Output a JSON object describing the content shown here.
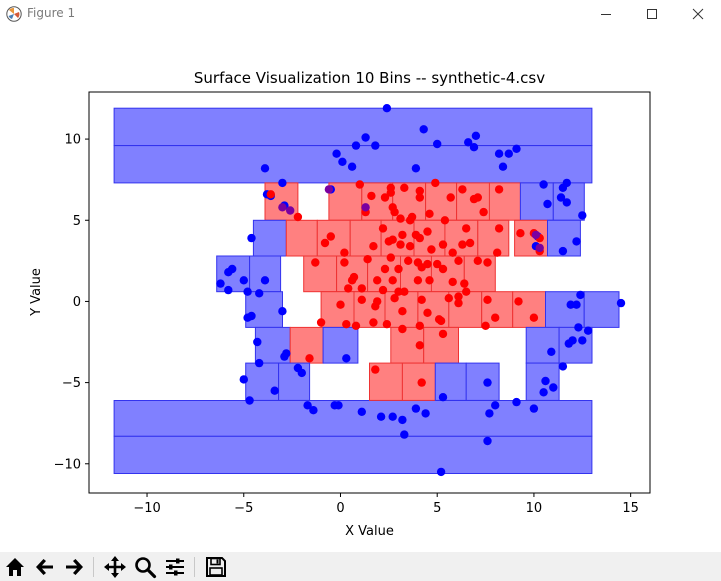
{
  "window": {
    "title": "Figure 1"
  },
  "toolbar_icons": [
    "home-icon",
    "back-arrow-icon",
    "forward-arrow-icon",
    "pan-icon",
    "zoom-icon",
    "configure-subplots-icon",
    "save-icon"
  ],
  "colors": {
    "blue": "#0000ff",
    "red": "#ff0000",
    "blue_fill": "#8080ff",
    "red_fill": "#ff8080",
    "toolbar_bg": "#f0f0f0"
  },
  "chart_data": {
    "type": "scatter",
    "title": "Surface Visualization 10 Bins -- synthetic-4.csv",
    "xlabel": "X Value",
    "ylabel": "Y Value",
    "xlim": [
      -13,
      16
    ],
    "ylim": [
      -11.8,
      12.9
    ],
    "xticks": [
      -10,
      -5,
      0,
      5,
      10,
      15
    ],
    "yticks": [
      -10,
      -5,
      0,
      5,
      10
    ],
    "xtick_labels": [
      "−10",
      "−5",
      "0",
      "5",
      "10",
      "15"
    ],
    "ytick_labels": [
      "−10",
      "−5",
      "0",
      "5",
      "10"
    ],
    "grid": false,
    "rects": [
      {
        "x0": -11.7,
        "x1": 13.0,
        "y0": 7.3,
        "y1": 9.6,
        "color": "blue"
      },
      {
        "x0": -11.7,
        "x1": 13.0,
        "y0": 9.6,
        "y1": 11.9,
        "color": "blue"
      },
      {
        "x0": -11.7,
        "x1": 13.0,
        "y0": -10.6,
        "y1": -8.3,
        "color": "blue"
      },
      {
        "x0": -11.7,
        "x1": 13.0,
        "y0": -8.3,
        "y1": -6.1,
        "color": "blue"
      },
      {
        "x0": -3.9,
        "x1": -2.2,
        "y0": 5.0,
        "y1": 7.3,
        "color": "red"
      },
      {
        "x0": -0.6,
        "x1": 1.1,
        "y0": 5.0,
        "y1": 7.3,
        "color": "red"
      },
      {
        "x0": 1.1,
        "x1": 2.7,
        "y0": 5.0,
        "y1": 7.3,
        "color": "red"
      },
      {
        "x0": 2.7,
        "x1": 4.4,
        "y0": 5.0,
        "y1": 7.3,
        "color": "red"
      },
      {
        "x0": 4.4,
        "x1": 6.0,
        "y0": 5.0,
        "y1": 7.3,
        "color": "red"
      },
      {
        "x0": 6.0,
        "x1": 7.7,
        "y0": 5.0,
        "y1": 7.3,
        "color": "red"
      },
      {
        "x0": 7.7,
        "x1": 9.3,
        "y0": 5.0,
        "y1": 7.3,
        "color": "red"
      },
      {
        "x0": 9.3,
        "x1": 11.0,
        "y0": 5.0,
        "y1": 7.3,
        "color": "blue"
      },
      {
        "x0": 11.0,
        "x1": 12.6,
        "y0": 5.0,
        "y1": 7.3,
        "color": "blue"
      },
      {
        "x0": -4.5,
        "x1": -2.8,
        "y0": 2.8,
        "y1": 5.0,
        "color": "blue"
      },
      {
        "x0": -2.8,
        "x1": -1.2,
        "y0": 2.8,
        "y1": 5.0,
        "color": "red"
      },
      {
        "x0": -1.2,
        "x1": 0.5,
        "y0": 2.8,
        "y1": 5.0,
        "color": "red"
      },
      {
        "x0": 0.5,
        "x1": 2.1,
        "y0": 2.8,
        "y1": 5.0,
        "color": "red"
      },
      {
        "x0": 2.1,
        "x1": 3.8,
        "y0": 2.8,
        "y1": 5.0,
        "color": "red"
      },
      {
        "x0": 3.8,
        "x1": 5.4,
        "y0": 2.8,
        "y1": 5.0,
        "color": "red"
      },
      {
        "x0": 5.4,
        "x1": 7.1,
        "y0": 2.8,
        "y1": 5.0,
        "color": "red"
      },
      {
        "x0": 7.1,
        "x1": 8.7,
        "y0": 2.8,
        "y1": 5.0,
        "color": "red"
      },
      {
        "x0": 9.0,
        "x1": 10.7,
        "y0": 2.8,
        "y1": 5.0,
        "color": "red"
      },
      {
        "x0": 10.7,
        "x1": 12.4,
        "y0": 2.8,
        "y1": 5.0,
        "color": "blue"
      },
      {
        "x0": -6.4,
        "x1": -4.7,
        "y0": 0.6,
        "y1": 2.8,
        "color": "blue"
      },
      {
        "x0": -4.7,
        "x1": -3.1,
        "y0": 0.6,
        "y1": 2.8,
        "color": "blue"
      },
      {
        "x0": -1.9,
        "x1": -0.2,
        "y0": 0.6,
        "y1": 2.8,
        "color": "red"
      },
      {
        "x0": -0.2,
        "x1": 1.4,
        "y0": 0.6,
        "y1": 2.8,
        "color": "red"
      },
      {
        "x0": 1.4,
        "x1": 3.1,
        "y0": 0.6,
        "y1": 2.8,
        "color": "red"
      },
      {
        "x0": 3.1,
        "x1": 4.7,
        "y0": 0.6,
        "y1": 2.8,
        "color": "red"
      },
      {
        "x0": 4.7,
        "x1": 6.4,
        "y0": 0.6,
        "y1": 2.8,
        "color": "red"
      },
      {
        "x0": 6.4,
        "x1": 8.0,
        "y0": 0.6,
        "y1": 2.8,
        "color": "red"
      },
      {
        "x0": -4.9,
        "x1": -3.0,
        "y0": -1.6,
        "y1": 0.6,
        "color": "blue"
      },
      {
        "x0": -1.0,
        "x1": 0.7,
        "y0": -1.6,
        "y1": 0.6,
        "color": "red"
      },
      {
        "x0": 0.7,
        "x1": 2.3,
        "y0": -1.6,
        "y1": 0.6,
        "color": "red"
      },
      {
        "x0": 2.3,
        "x1": 4.0,
        "y0": -1.6,
        "y1": 0.6,
        "color": "red"
      },
      {
        "x0": 4.0,
        "x1": 5.6,
        "y0": -1.6,
        "y1": 0.6,
        "color": "red"
      },
      {
        "x0": 5.6,
        "x1": 7.3,
        "y0": -1.6,
        "y1": 0.6,
        "color": "red"
      },
      {
        "x0": 7.3,
        "x1": 8.9,
        "y0": -1.6,
        "y1": 0.6,
        "color": "red"
      },
      {
        "x0": 8.9,
        "x1": 10.6,
        "y0": -1.6,
        "y1": 0.6,
        "color": "red"
      },
      {
        "x0": 10.6,
        "x1": 12.6,
        "y0": -1.6,
        "y1": 0.6,
        "color": "blue"
      },
      {
        "x0": 12.6,
        "x1": 14.4,
        "y0": -1.6,
        "y1": 0.6,
        "color": "blue"
      },
      {
        "x0": -4.4,
        "x1": -2.6,
        "y0": -3.8,
        "y1": -1.6,
        "color": "blue"
      },
      {
        "x0": -2.6,
        "x1": -0.9,
        "y0": -3.8,
        "y1": -1.6,
        "color": "red"
      },
      {
        "x0": -0.9,
        "x1": 0.9,
        "y0": -3.8,
        "y1": -1.6,
        "color": "blue"
      },
      {
        "x0": 2.6,
        "x1": 4.3,
        "y0": -3.8,
        "y1": -1.6,
        "color": "red"
      },
      {
        "x0": 4.3,
        "x1": 6.1,
        "y0": -3.8,
        "y1": -1.6,
        "color": "red"
      },
      {
        "x0": 9.6,
        "x1": 11.3,
        "y0": -3.8,
        "y1": -1.6,
        "color": "blue"
      },
      {
        "x0": 11.3,
        "x1": 13.0,
        "y0": -3.8,
        "y1": -1.6,
        "color": "blue"
      },
      {
        "x0": -4.9,
        "x1": -3.2,
        "y0": -6.1,
        "y1": -3.8,
        "color": "blue"
      },
      {
        "x0": -3.2,
        "x1": -1.6,
        "y0": -6.1,
        "y1": -3.8,
        "color": "blue"
      },
      {
        "x0": 1.5,
        "x1": 3.2,
        "y0": -6.1,
        "y1": -3.8,
        "color": "red"
      },
      {
        "x0": 3.2,
        "x1": 4.9,
        "y0": -6.1,
        "y1": -3.8,
        "color": "red"
      },
      {
        "x0": 4.9,
        "x1": 6.5,
        "y0": -6.1,
        "y1": -3.8,
        "color": "blue"
      },
      {
        "x0": 6.5,
        "x1": 8.2,
        "y0": -6.1,
        "y1": -3.8,
        "color": "blue"
      },
      {
        "x0": 9.6,
        "x1": 11.3,
        "y0": -6.1,
        "y1": -3.8,
        "color": "blue"
      }
    ],
    "blue_points": [
      [
        2.4,
        11.9
      ],
      [
        4.3,
        10.6
      ],
      [
        7.0,
        10.2
      ],
      [
        1.3,
        10.1
      ],
      [
        6.6,
        9.8
      ],
      [
        5.0,
        9.7
      ],
      [
        1.8,
        9.6
      ],
      [
        0.8,
        9.6
      ],
      [
        6.9,
        9.5
      ],
      [
        9.1,
        9.4
      ],
      [
        -0.2,
        9.1
      ],
      [
        8.2,
        9.1
      ],
      [
        8.7,
        9.1
      ],
      [
        0.1,
        8.6
      ],
      [
        0.6,
        8.3
      ],
      [
        8.4,
        8.3
      ],
      [
        -3.9,
        8.2
      ],
      [
        3.9,
        8.2
      ],
      [
        10.5,
        7.2
      ],
      [
        11.7,
        7.3
      ],
      [
        -3.0,
        7.3
      ],
      [
        11.5,
        7.0
      ],
      [
        -0.5,
        6.9
      ],
      [
        11.4,
        6.4
      ],
      [
        -3.8,
        6.6
      ],
      [
        -3.6,
        6.5
      ],
      [
        11.7,
        6.1
      ],
      [
        10.7,
        6.0
      ],
      [
        -2.9,
        5.9
      ],
      [
        12.5,
        5.3
      ],
      [
        -4.6,
        3.9
      ],
      [
        10.2,
        4.0
      ],
      [
        12.2,
        3.7
      ],
      [
        10.1,
        3.4
      ],
      [
        11.5,
        3.1
      ],
      [
        -5.6,
        2.0
      ],
      [
        -5.8,
        1.8
      ],
      [
        -5.0,
        1.3
      ],
      [
        -3.9,
        1.3
      ],
      [
        -4.2,
        0.5
      ],
      [
        -5.8,
        0.7
      ],
      [
        -6.2,
        1.1
      ],
      [
        -4.8,
        0.6
      ],
      [
        12.4,
        0.4
      ],
      [
        11.9,
        -0.2
      ],
      [
        12.2,
        -0.2
      ],
      [
        14.5,
        -0.1
      ],
      [
        -3.0,
        -0.6
      ],
      [
        -4.6,
        -0.9
      ],
      [
        -4.8,
        -1.0
      ],
      [
        12.3,
        -1.6
      ],
      [
        12.8,
        -1.8
      ],
      [
        12.5,
        -2.4
      ],
      [
        11.8,
        -2.6
      ],
      [
        10.9,
        -3.1
      ],
      [
        -4.3,
        -2.5
      ],
      [
        -2.8,
        -3.2
      ],
      [
        -2.9,
        -3.4
      ],
      [
        0.3,
        -3.5
      ],
      [
        12.0,
        -2.4
      ],
      [
        11.5,
        -4.0
      ],
      [
        -4.2,
        -3.8
      ],
      [
        -2.2,
        -4.1
      ],
      [
        -2.0,
        -4.4
      ],
      [
        -5.0,
        -4.8
      ],
      [
        7.6,
        -5.0
      ],
      [
        10.6,
        -4.9
      ],
      [
        11.0,
        -5.3
      ],
      [
        -3.4,
        -5.5
      ],
      [
        5.3,
        -5.9
      ],
      [
        10.5,
        -5.6
      ],
      [
        -4.7,
        -6.1
      ],
      [
        8.0,
        -6.4
      ],
      [
        9.1,
        -6.2
      ],
      [
        -1.7,
        -6.4
      ],
      [
        -1.4,
        -6.7
      ],
      [
        -0.3,
        -6.4
      ],
      [
        -0.1,
        -6.4
      ],
      [
        1.1,
        -6.8
      ],
      [
        7.7,
        -6.9
      ],
      [
        4.4,
        -6.9
      ],
      [
        3.9,
        -6.6
      ],
      [
        10.0,
        -6.6
      ],
      [
        2.1,
        -7.1
      ],
      [
        2.7,
        -7.1
      ],
      [
        3.2,
        -7.3
      ],
      [
        3.3,
        -8.2
      ],
      [
        7.6,
        -8.6
      ],
      [
        5.2,
        -10.5
      ]
    ],
    "red_points": [
      [
        1.0,
        7.2
      ],
      [
        2.6,
        7.0
      ],
      [
        3.3,
        7.0
      ],
      [
        4.9,
        7.3
      ],
      [
        2.6,
        6.7
      ],
      [
        4.1,
        6.8
      ],
      [
        6.3,
        6.9
      ],
      [
        8.2,
        6.9
      ],
      [
        1.6,
        6.5
      ],
      [
        4.1,
        6.4
      ],
      [
        5.7,
        6.4
      ],
      [
        7.1,
        6.4
      ],
      [
        6.9,
        6.3
      ],
      [
        2.3,
        6.4
      ],
      [
        -3.6,
        6.6
      ],
      [
        2.7,
        5.8
      ],
      [
        2.8,
        5.5
      ],
      [
        -2.2,
        5.2
      ],
      [
        5.4,
        5.0
      ],
      [
        1.3,
        5.5
      ],
      [
        3.1,
        5.1
      ],
      [
        4.6,
        5.4
      ],
      [
        7.4,
        5.5
      ],
      [
        3.7,
        5.2
      ],
      [
        3.6,
        5.0
      ],
      [
        4.5,
        4.3
      ],
      [
        6.5,
        4.5
      ],
      [
        8.2,
        4.5
      ],
      [
        -0.5,
        4.0
      ],
      [
        2.2,
        4.5
      ],
      [
        3.2,
        4.1
      ],
      [
        3.9,
        4.1
      ],
      [
        4.1,
        3.9
      ],
      [
        -0.8,
        3.6
      ],
      [
        2.7,
        3.8
      ],
      [
        2.5,
        3.7
      ],
      [
        3.1,
        3.5
      ],
      [
        6.3,
        3.5
      ],
      [
        6.7,
        3.6
      ],
      [
        9.3,
        4.2
      ],
      [
        10.0,
        4.2
      ],
      [
        10.3,
        3.9
      ],
      [
        10.3,
        3.1
      ],
      [
        1.7,
        3.4
      ],
      [
        3.6,
        3.4
      ],
      [
        5.3,
        3.5
      ],
      [
        5.8,
        3.0
      ],
      [
        0.2,
        3.0
      ],
      [
        4.7,
        3.2
      ],
      [
        8.1,
        3.0
      ],
      [
        1.4,
        2.6
      ],
      [
        2.6,
        2.7
      ],
      [
        3.5,
        2.5
      ],
      [
        4.0,
        2.4
      ],
      [
        5.0,
        2.3
      ],
      [
        6.1,
        2.5
      ],
      [
        -1.3,
        2.4
      ],
      [
        0.2,
        2.4
      ],
      [
        2.3,
        2.0
      ],
      [
        3.0,
        2.0
      ],
      [
        4.2,
        2.1
      ],
      [
        4.5,
        2.3
      ],
      [
        5.3,
        2.0
      ],
      [
        7.1,
        2.5
      ],
      [
        7.6,
        2.4
      ],
      [
        0.7,
        1.5
      ],
      [
        0.6,
        1.3
      ],
      [
        1.9,
        1.3
      ],
      [
        2.7,
        1.3
      ],
      [
        4.0,
        1.3
      ],
      [
        4.6,
        1.3
      ],
      [
        5.8,
        1.2
      ],
      [
        6.4,
        1.1
      ],
      [
        0.4,
        0.8
      ],
      [
        1.1,
        0.8
      ],
      [
        2.2,
        0.7
      ],
      [
        3.3,
        0.6
      ],
      [
        3.0,
        0.6
      ],
      [
        6.5,
        0.6
      ],
      [
        6.1,
        0.3
      ],
      [
        1.9,
        0.0
      ],
      [
        1.1,
        0.1
      ],
      [
        2.8,
        0.2
      ],
      [
        4.2,
        0.1
      ],
      [
        6.1,
        -0.1
      ],
      [
        5.6,
        0.2
      ],
      [
        7.6,
        0.1
      ],
      [
        9.2,
        0.0
      ],
      [
        0.0,
        -0.2
      ],
      [
        1.8,
        -0.3
      ],
      [
        3.2,
        -0.6
      ],
      [
        4.5,
        -0.7
      ],
      [
        8.0,
        -1.0
      ],
      [
        10.0,
        -1.0
      ],
      [
        -1.0,
        -1.3
      ],
      [
        0.3,
        -1.4
      ],
      [
        2.4,
        -1.4
      ],
      [
        4.1,
        -1.5
      ],
      [
        5.1,
        -1.1
      ],
      [
        5.2,
        -1.2
      ],
      [
        7.5,
        -1.5
      ],
      [
        1.7,
        -1.3
      ],
      [
        3.2,
        -1.7
      ],
      [
        0.8,
        -1.5
      ],
      [
        5.3,
        -2.0
      ],
      [
        4.1,
        -2.7
      ],
      [
        -1.6,
        -3.5
      ],
      [
        1.8,
        -4.2
      ],
      [
        4.2,
        -5.0
      ]
    ],
    "purple_points": [
      [
        -0.6,
        6.9
      ],
      [
        -2.6,
        5.6
      ],
      [
        10.3,
        3.3
      ],
      [
        10.1,
        4.1
      ],
      [
        1.3,
        5.8
      ],
      [
        -3.0,
        5.8
      ]
    ]
  }
}
